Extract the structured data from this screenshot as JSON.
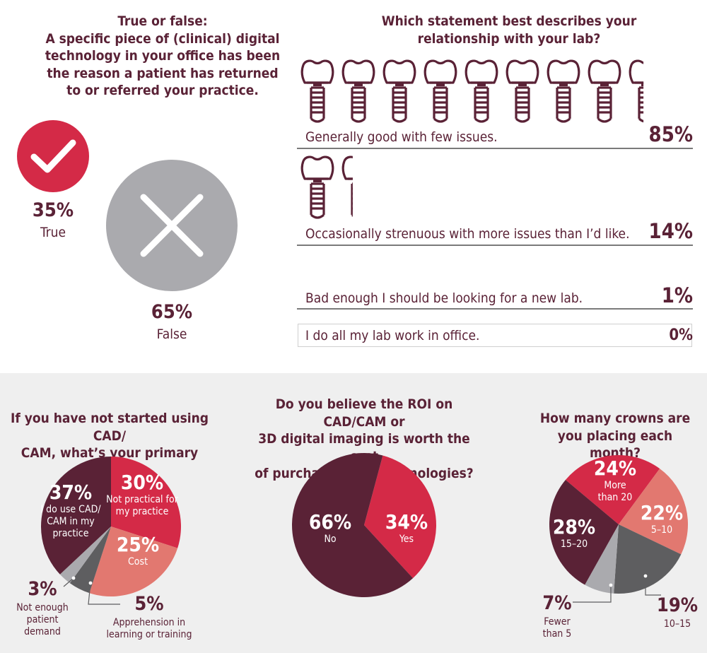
{
  "colors": {
    "maroon": "#5a2236",
    "red": "#d42a47",
    "salmon": "#e27870",
    "gray": "#aaaaae",
    "dark_gray": "#5e5e60",
    "band": "#efefef"
  },
  "true_false": {
    "title_lines": [
      "True or false:",
      "A specific piece of (clinical) digital",
      "technology in your office has been",
      "the reason a patient has returned",
      "to or referred your practice."
    ],
    "true_pct": "35%",
    "true_label": "True",
    "false_pct": "65%",
    "false_label": "False"
  },
  "lab": {
    "title_lines": [
      "Which statement best describes your",
      "relationship with your lab?"
    ],
    "icon": "dental-implant-icon"
  },
  "cadcam_reason": {
    "title_lines": [
      "If you have not started using CAD/",
      "CAM, what’s your primary reason?"
    ]
  },
  "roi": {
    "title_lines": [
      "Do you believe the ROI on CAD/CAM or",
      "3D digital imaging is worth the cost",
      "of purchasing the technologies?"
    ]
  },
  "crowns": {
    "title_lines": [
      "How many crowns are",
      "you placing each month?"
    ]
  },
  "chart_data": [
    {
      "type": "bar",
      "name": "lab-relationship",
      "categories": [
        "Generally good with few issues.",
        "Occasionally strenuous with more issues than I’d like.",
        "Bad enough I should be looking for a new lab.",
        "I do all my lab work in office."
      ],
      "values": [
        85,
        14,
        1,
        0
      ],
      "value_labels": [
        "85%",
        "14%",
        "1%",
        "0%"
      ]
    },
    {
      "type": "pie",
      "name": "cadcam-reason",
      "slices": [
        {
          "label_lines": [
            "I do use CAD/",
            "CAM in my",
            "practice"
          ],
          "value": 37,
          "pct": "37%",
          "color": "#5a2236"
        },
        {
          "label_lines": [
            "Not practical for",
            "my practice"
          ],
          "value": 30,
          "pct": "30%",
          "color": "#d42a47"
        },
        {
          "label_lines": [
            "Cost"
          ],
          "value": 25,
          "pct": "25%",
          "color": "#e27870"
        },
        {
          "label_lines": [
            "Apprehension in",
            "learning or training"
          ],
          "value": 5,
          "pct": "5%",
          "color": "#5e5e60"
        },
        {
          "label_lines": [
            "Not enough",
            "patient",
            "demand"
          ],
          "value": 3,
          "pct": "3%",
          "color": "#aaaaae"
        }
      ]
    },
    {
      "type": "pie",
      "name": "roi",
      "slices": [
        {
          "label_lines": [
            "No"
          ],
          "value": 66,
          "pct": "66%",
          "color": "#5a2236"
        },
        {
          "label_lines": [
            "Yes"
          ],
          "value": 34,
          "pct": "34%",
          "color": "#d42a47"
        }
      ]
    },
    {
      "type": "pie",
      "name": "crowns-per-month",
      "slices": [
        {
          "label_lines": [
            "More",
            "than 20"
          ],
          "value": 24,
          "pct": "24%",
          "color": "#d42a47"
        },
        {
          "label_lines": [
            "5–10"
          ],
          "value": 22,
          "pct": "22%",
          "color": "#e27870"
        },
        {
          "label_lines": [
            "10–15"
          ],
          "value": 19,
          "pct": "19%",
          "color": "#5e5e60"
        },
        {
          "label_lines": [
            "Fewer",
            "than 5"
          ],
          "value": 7,
          "pct": "7%",
          "color": "#aaaaae"
        },
        {
          "label_lines": [
            "15–20"
          ],
          "value": 28,
          "pct": "28%",
          "color": "#5a2236"
        }
      ]
    }
  ]
}
